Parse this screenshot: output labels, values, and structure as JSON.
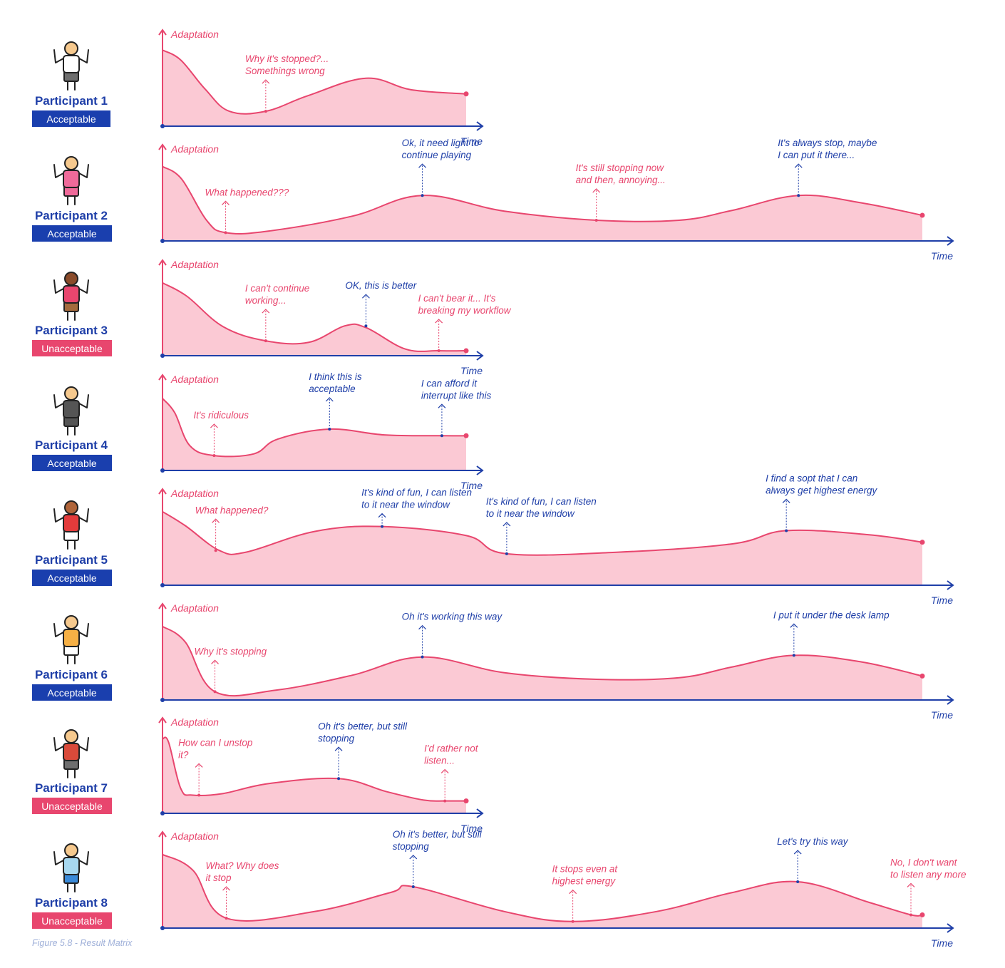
{
  "colors": {
    "accent_blue": "#1f3fa8",
    "accent_pink": "#e8466e",
    "fill_pink": "#fbc9d4",
    "acceptable_badge": "#1a3fae",
    "unacceptable_badge": "#e8466e"
  },
  "caption": "Figure 5.8 - Result Matrix",
  "chart_data": [
    {
      "type": "area",
      "participant": "Participant 1",
      "verdict": "Acceptable",
      "ylabel": "Adaptation",
      "xlabel": "Time",
      "time_range": [
        0,
        1.0
      ],
      "adaptation_range": [
        0,
        1
      ],
      "points": [
        [
          0,
          0.92
        ],
        [
          0.06,
          0.8
        ],
        [
          0.14,
          0.45
        ],
        [
          0.22,
          0.18
        ],
        [
          0.34,
          0.18
        ],
        [
          0.48,
          0.37
        ],
        [
          0.67,
          0.58
        ],
        [
          0.82,
          0.44
        ],
        [
          1.0,
          0.39
        ]
      ],
      "annotations": [
        {
          "x": 0.34,
          "y": 0.18,
          "text": [
            "Why it's stopped?...",
            "Somethings wrong"
          ],
          "sentiment": "negative"
        }
      ]
    },
    {
      "type": "area",
      "participant": "Participant 2",
      "verdict": "Acceptable",
      "ylabel": "Adaptation",
      "xlabel": "Time",
      "time_range": [
        0,
        1.0
      ],
      "adaptation_range": [
        0,
        1
      ],
      "points": [
        [
          0,
          0.9
        ],
        [
          0.025,
          0.75
        ],
        [
          0.058,
          0.25
        ],
        [
          0.083,
          0.1
        ],
        [
          0.14,
          0.12
        ],
        [
          0.25,
          0.3
        ],
        [
          0.342,
          0.55
        ],
        [
          0.45,
          0.36
        ],
        [
          0.571,
          0.25
        ],
        [
          0.68,
          0.25
        ],
        [
          0.75,
          0.37
        ],
        [
          0.837,
          0.55
        ],
        [
          0.92,
          0.46
        ],
        [
          1.0,
          0.31
        ]
      ],
      "annotations": [
        {
          "x": 0.083,
          "y": 0.1,
          "text": [
            "What happened???"
          ],
          "sentiment": "negative"
        },
        {
          "x": 0.342,
          "y": 0.55,
          "text": [
            "Ok, it need light to",
            "continue playing"
          ],
          "sentiment": "positive"
        },
        {
          "x": 0.571,
          "y": 0.25,
          "text": [
            "It's still stopping now",
            "and then, annoying..."
          ],
          "sentiment": "negative"
        },
        {
          "x": 0.837,
          "y": 0.55,
          "text": [
            "It's always stop, maybe",
            "I can put it there..."
          ],
          "sentiment": "positive"
        }
      ]
    },
    {
      "type": "area",
      "participant": "Participant 3",
      "verdict": "Unacceptable",
      "ylabel": "Adaptation",
      "xlabel": "Time",
      "time_range": [
        0,
        1.0
      ],
      "adaptation_range": [
        0,
        1
      ],
      "points": [
        [
          0,
          0.88
        ],
        [
          0.08,
          0.72
        ],
        [
          0.2,
          0.35
        ],
        [
          0.34,
          0.18
        ],
        [
          0.48,
          0.16
        ],
        [
          0.6,
          0.36
        ],
        [
          0.67,
          0.34
        ],
        [
          0.8,
          0.08
        ],
        [
          0.91,
          0.06
        ],
        [
          1.0,
          0.06
        ]
      ],
      "annotations": [
        {
          "x": 0.34,
          "y": 0.18,
          "text": [
            "I can't continue",
            "working..."
          ],
          "sentiment": "negative"
        },
        {
          "x": 0.67,
          "y": 0.36,
          "text": [
            "OK, this is better"
          ],
          "sentiment": "positive"
        },
        {
          "x": 0.91,
          "y": 0.06,
          "text": [
            "I can't bear it... It's",
            "breaking my workflow"
          ],
          "sentiment": "negative"
        }
      ]
    },
    {
      "type": "area",
      "participant": "Participant 4",
      "verdict": "Acceptable",
      "ylabel": "Adaptation",
      "xlabel": "Time",
      "time_range": [
        0,
        1.0
      ],
      "adaptation_range": [
        0,
        1
      ],
      "points": [
        [
          0,
          0.87
        ],
        [
          0.04,
          0.7
        ],
        [
          0.09,
          0.3
        ],
        [
          0.17,
          0.18
        ],
        [
          0.3,
          0.2
        ],
        [
          0.38,
          0.38
        ],
        [
          0.55,
          0.5
        ],
        [
          0.73,
          0.43
        ],
        [
          0.92,
          0.42
        ],
        [
          1.0,
          0.42
        ]
      ],
      "annotations": [
        {
          "x": 0.17,
          "y": 0.18,
          "text": [
            "It's ridiculous"
          ],
          "sentiment": "negative"
        },
        {
          "x": 0.55,
          "y": 0.5,
          "text": [
            "I think this is",
            "acceptable"
          ],
          "sentiment": "positive"
        },
        {
          "x": 0.92,
          "y": 0.42,
          "text": [
            "I can afford it",
            "interrupt like this"
          ],
          "sentiment": "positive"
        }
      ]
    },
    {
      "type": "area",
      "participant": "Participant 5",
      "verdict": "Acceptable",
      "ylabel": "Adaptation",
      "xlabel": "Time",
      "time_range": [
        0,
        1.0
      ],
      "adaptation_range": [
        0,
        1
      ],
      "points": [
        [
          0,
          0.89
        ],
        [
          0.03,
          0.72
        ],
        [
          0.075,
          0.42
        ],
        [
          0.11,
          0.4
        ],
        [
          0.2,
          0.65
        ],
        [
          0.289,
          0.71
        ],
        [
          0.4,
          0.6
        ],
        [
          0.453,
          0.38
        ],
        [
          0.6,
          0.4
        ],
        [
          0.75,
          0.5
        ],
        [
          0.821,
          0.66
        ],
        [
          0.93,
          0.61
        ],
        [
          1.0,
          0.52
        ]
      ],
      "annotations": [
        {
          "x": 0.07,
          "y": 0.42,
          "text": [
            "What happened?"
          ],
          "sentiment": "negative"
        },
        {
          "x": 0.289,
          "y": 0.71,
          "text": [
            "It's kind of fun, I can listen",
            "to it near the window"
          ],
          "sentiment": "positive"
        },
        {
          "x": 0.453,
          "y": 0.38,
          "text": [
            "It's kind of fun, I can listen",
            "to it near the window"
          ],
          "sentiment": "positive"
        },
        {
          "x": 0.821,
          "y": 0.66,
          "text": [
            "I find a sopt that I can",
            "always get highest energy"
          ],
          "sentiment": "positive"
        }
      ]
    },
    {
      "type": "area",
      "participant": "Participant 6",
      "verdict": "Acceptable",
      "ylabel": "Adaptation",
      "xlabel": "Time",
      "time_range": [
        0,
        1.0
      ],
      "adaptation_range": [
        0,
        1
      ],
      "points": [
        [
          0,
          0.89
        ],
        [
          0.03,
          0.7
        ],
        [
          0.069,
          0.1
        ],
        [
          0.15,
          0.12
        ],
        [
          0.25,
          0.3
        ],
        [
          0.342,
          0.52
        ],
        [
          0.45,
          0.33
        ],
        [
          0.571,
          0.25
        ],
        [
          0.68,
          0.27
        ],
        [
          0.75,
          0.4
        ],
        [
          0.831,
          0.54
        ],
        [
          0.92,
          0.46
        ],
        [
          1.0,
          0.29
        ]
      ],
      "annotations": [
        {
          "x": 0.069,
          "y": 0.1,
          "text": [
            "Why it's stopping"
          ],
          "sentiment": "negative"
        },
        {
          "x": 0.342,
          "y": 0.52,
          "text": [
            "Oh it's working this way"
          ],
          "sentiment": "positive"
        },
        {
          "x": 0.831,
          "y": 0.54,
          "text": [
            "I put it under the desk lamp"
          ],
          "sentiment": "positive"
        }
      ]
    },
    {
      "type": "area",
      "participant": "Participant 7",
      "verdict": "Unacceptable",
      "ylabel": "Adaptation",
      "xlabel": "Time",
      "time_range": [
        0,
        1.0
      ],
      "adaptation_range": [
        0,
        1
      ],
      "points": [
        [
          0,
          0.9
        ],
        [
          0.02,
          0.86
        ],
        [
          0.06,
          0.3
        ],
        [
          0.1,
          0.22
        ],
        [
          0.2,
          0.24
        ],
        [
          0.35,
          0.36
        ],
        [
          0.58,
          0.42
        ],
        [
          0.74,
          0.26
        ],
        [
          0.86,
          0.16
        ],
        [
          0.93,
          0.15
        ],
        [
          1.0,
          0.15
        ]
      ],
      "annotations": [
        {
          "x": 0.12,
          "y": 0.22,
          "text": [
            "How can I unstop",
            "it?"
          ],
          "sentiment": "negative"
        },
        {
          "x": 0.58,
          "y": 0.42,
          "text": [
            "Oh it's better, but still",
            "stopping"
          ],
          "sentiment": "positive"
        },
        {
          "x": 0.93,
          "y": 0.15,
          "text": [
            "I'd rather not",
            "listen..."
          ],
          "sentiment": "negative"
        }
      ]
    },
    {
      "type": "area",
      "participant": "Participant 8",
      "verdict": "Unacceptable",
      "ylabel": "Adaptation",
      "xlabel": "Time",
      "time_range": [
        0,
        1.0
      ],
      "adaptation_range": [
        0,
        1
      ],
      "points": [
        [
          0,
          0.89
        ],
        [
          0.04,
          0.7
        ],
        [
          0.084,
          0.12
        ],
        [
          0.2,
          0.2
        ],
        [
          0.3,
          0.43
        ],
        [
          0.33,
          0.5
        ],
        [
          0.45,
          0.2
        ],
        [
          0.54,
          0.08
        ],
        [
          0.65,
          0.2
        ],
        [
          0.75,
          0.43
        ],
        [
          0.836,
          0.56
        ],
        [
          0.93,
          0.31
        ],
        [
          0.985,
          0.16
        ],
        [
          1.0,
          0.16
        ]
      ],
      "annotations": [
        {
          "x": 0.084,
          "y": 0.12,
          "text": [
            "What? Why does",
            "it stop"
          ],
          "sentiment": "negative"
        },
        {
          "x": 0.33,
          "y": 0.5,
          "text": [
            "Oh it's better, but still",
            "stopping"
          ],
          "sentiment": "positive"
        },
        {
          "x": 0.54,
          "y": 0.08,
          "text": [
            "It stops even at",
            "highest energy"
          ],
          "sentiment": "negative"
        },
        {
          "x": 0.836,
          "y": 0.56,
          "text": [
            "Let's try this way"
          ],
          "sentiment": "positive"
        },
        {
          "x": 0.985,
          "y": 0.16,
          "text": [
            "No, I don't want",
            "to listen any more"
          ],
          "sentiment": "negative"
        }
      ]
    }
  ]
}
